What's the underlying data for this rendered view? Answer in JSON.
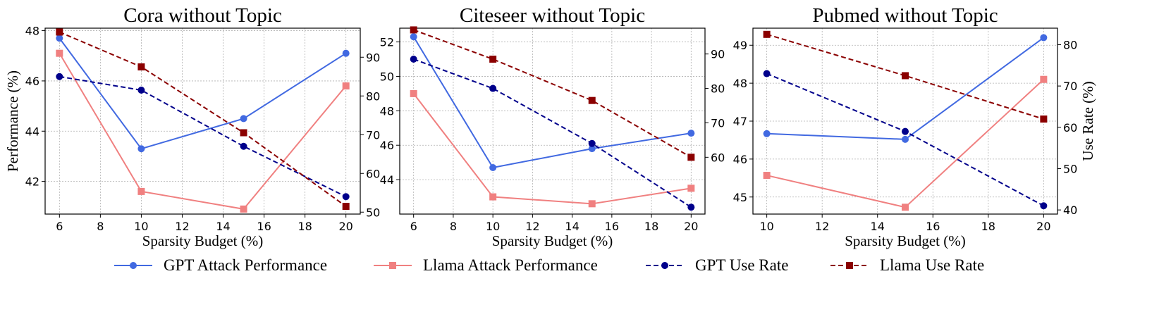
{
  "xlabel": "Sparsity Budget (%)",
  "ylabel_left": "Performance (%)",
  "ylabel_right": "Use Rate (%)",
  "legend": [
    {
      "key": "gpt_perf",
      "label": "GPT Attack Performance"
    },
    {
      "key": "llama_perf",
      "label": "Llama Attack Performance"
    },
    {
      "key": "gpt_use",
      "label": "GPT Use Rate"
    },
    {
      "key": "llama_use",
      "label": "Llama Use Rate"
    }
  ],
  "styles": {
    "gpt_perf": {
      "color": "#4169e1",
      "dash": "solid",
      "marker": "circle",
      "axis": "left"
    },
    "llama_perf": {
      "color": "#f08080",
      "dash": "solid",
      "marker": "square",
      "axis": "left"
    },
    "gpt_use": {
      "color": "#00008b",
      "dash": "dashed",
      "marker": "circle",
      "axis": "right"
    },
    "llama_use": {
      "color": "#8b0000",
      "dash": "dashed",
      "marker": "square",
      "axis": "right"
    }
  },
  "chart_data": [
    {
      "type": "line",
      "title": "Cora without Topic",
      "x": [
        6,
        10,
        15,
        20
      ],
      "xlim": [
        5.3,
        20.7
      ],
      "xticks": [
        6,
        8,
        10,
        12,
        14,
        16,
        18,
        20
      ],
      "ylim_left": [
        40.7,
        48.1
      ],
      "yticks_left": [
        42,
        44,
        46,
        48
      ],
      "ylim_right": [
        49.5,
        97.5
      ],
      "yticks_right": [
        50,
        60,
        70,
        80,
        90
      ],
      "show_ylabel_left": true,
      "show_ylabel_right": false,
      "series": [
        {
          "key": "gpt_perf",
          "values": [
            47.7,
            43.3,
            44.5,
            47.1
          ]
        },
        {
          "key": "llama_perf",
          "values": [
            47.1,
            41.6,
            40.9,
            45.8
          ]
        },
        {
          "key": "gpt_use",
          "values": [
            85.0,
            81.5,
            67.0,
            54.0
          ]
        },
        {
          "key": "llama_use",
          "values": [
            96.5,
            87.5,
            70.5,
            51.5
          ]
        }
      ]
    },
    {
      "type": "line",
      "title": "Citeseer without Topic",
      "x": [
        6,
        10,
        15,
        20
      ],
      "xlim": [
        5.3,
        20.7
      ],
      "xticks": [
        6,
        8,
        10,
        12,
        14,
        16,
        18,
        20
      ],
      "ylim_left": [
        42.0,
        52.8
      ],
      "yticks_left": [
        44,
        46,
        48,
        50,
        52
      ],
      "ylim_right": [
        43.5,
        97.5
      ],
      "yticks_right": [
        60,
        70,
        80,
        90
      ],
      "show_ylabel_left": false,
      "show_ylabel_right": false,
      "series": [
        {
          "key": "gpt_perf",
          "values": [
            52.3,
            44.7,
            45.8,
            46.7
          ]
        },
        {
          "key": "llama_perf",
          "values": [
            49.0,
            43.0,
            42.6,
            43.5
          ]
        },
        {
          "key": "gpt_use",
          "values": [
            88.5,
            80.0,
            64.0,
            45.5
          ]
        },
        {
          "key": "llama_use",
          "values": [
            97.0,
            88.5,
            76.5,
            60.0
          ]
        }
      ]
    },
    {
      "type": "line",
      "title": "Pubmed without Topic",
      "x": [
        10,
        15,
        20
      ],
      "xlim": [
        9.5,
        20.5
      ],
      "xticks": [
        10,
        12,
        14,
        16,
        18,
        20
      ],
      "ylim_left": [
        44.55,
        49.45
      ],
      "yticks_left": [
        45,
        46,
        47,
        48,
        49
      ],
      "ylim_right": [
        39.0,
        84.0
      ],
      "yticks_right": [
        40,
        50,
        60,
        70,
        80
      ],
      "show_ylabel_left": false,
      "show_ylabel_right": true,
      "series": [
        {
          "key": "gpt_perf",
          "values": [
            46.67,
            46.52,
            49.2
          ]
        },
        {
          "key": "llama_perf",
          "values": [
            45.57,
            44.73,
            48.1
          ]
        },
        {
          "key": "gpt_use",
          "values": [
            73.0,
            59.0,
            41.0
          ]
        },
        {
          "key": "llama_use",
          "values": [
            82.5,
            72.5,
            62.0
          ]
        }
      ]
    }
  ]
}
